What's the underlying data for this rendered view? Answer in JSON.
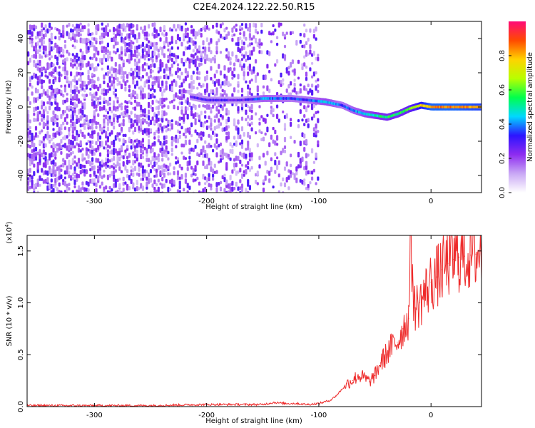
{
  "figure": {
    "title": "C2E4.2024.122.22.50.R15"
  },
  "chart_data": [
    {
      "type": "heatmap",
      "title": "C2E4.2024.122.22.50.R15",
      "xlabel": "Height of straight line (km)",
      "ylabel": "Frequency (Hz)",
      "xlim": [
        -360,
        45
      ],
      "ylim": [
        -50,
        50
      ],
      "x_ticks": [
        -300,
        -200,
        -100,
        0
      ],
      "x_tick_labels": [
        "-300",
        "-200",
        "-100",
        "0"
      ],
      "y_ticks": [
        -40,
        -20,
        0,
        20,
        40
      ],
      "y_tick_labels": [
        "-40",
        "-20",
        "0",
        "20",
        "40"
      ],
      "colorbar": {
        "label": "Normalized spectral amplitude",
        "range": [
          0,
          1
        ],
        "ticks": [
          0.0,
          0.2,
          0.4,
          0.6,
          0.8
        ],
        "tick_labels": [
          "0.0",
          "0.2",
          "0.4",
          "0.6",
          "0.8"
        ],
        "colors": [
          "#ffffff",
          "#c9a8f5",
          "#8e2cf0",
          "#2c14ff",
          "#00d8ff",
          "#00ff4c",
          "#b8ff00",
          "#ffd200",
          "#ff4a00",
          "#ff0a78"
        ]
      },
      "ridge": {
        "description_free": true,
        "x": [
          -215,
          -200,
          -170,
          -150,
          -125,
          -110,
          -95,
          -80,
          -70,
          -60,
          -50,
          -40,
          -30,
          -20,
          -10,
          0,
          20,
          45
        ],
        "y": [
          6,
          4,
          4,
          5,
          5,
          4,
          3,
          1,
          -2,
          -4,
          -5,
          -6,
          -4,
          -1,
          1,
          0,
          0,
          0
        ],
        "amplitude": [
          0.3,
          0.3,
          0.25,
          0.4,
          0.35,
          0.35,
          0.45,
          0.35,
          0.4,
          0.45,
          0.5,
          0.55,
          0.55,
          0.6,
          0.75,
          0.85,
          0.85,
          0.8
        ]
      },
      "noise_band_xlim": [
        -360,
        -100
      ]
    },
    {
      "type": "line",
      "title": "",
      "xlabel": "Height of straight line (km)",
      "ylabel": "SNR (10 * v/v)",
      "y_multiplier_label": "(x10",
      "y_multiplier_exponent": "4",
      "y_multiplier_close": ")",
      "xlim": [
        -360,
        45
      ],
      "ylim": [
        0,
        1.65
      ],
      "x_ticks": [
        -300,
        -200,
        -100,
        0
      ],
      "x_tick_labels": [
        "-300",
        "-200",
        "-100",
        "0"
      ],
      "y_ticks": [
        0.0,
        0.5,
        1.0,
        1.5
      ],
      "y_tick_labels": [
        "0.0",
        "0.5",
        "1.0",
        "1.5"
      ],
      "series": [
        {
          "color": "#ee2a2a",
          "x": [
            -360,
            -300,
            -250,
            -200,
            -190,
            -180,
            -150,
            -140,
            -130,
            -120,
            -110,
            -100,
            -90,
            -85,
            -80,
            -75,
            -70,
            -65,
            -60,
            -55,
            -50,
            -45,
            -40,
            -35,
            -30,
            -25,
            -20,
            -18,
            -15,
            -10,
            -5,
            0,
            5,
            10,
            15,
            20,
            25,
            30,
            35,
            40,
            45
          ],
          "y": [
            0.01,
            0.01,
            0.01,
            0.02,
            0.02,
            0.02,
            0.02,
            0.04,
            0.03,
            0.03,
            0.02,
            0.03,
            0.06,
            0.1,
            0.16,
            0.22,
            0.25,
            0.3,
            0.28,
            0.24,
            0.3,
            0.42,
            0.5,
            0.58,
            0.62,
            0.75,
            0.85,
            1.65,
            0.95,
            1.0,
            1.1,
            1.2,
            1.25,
            1.32,
            1.38,
            1.42,
            1.44,
            1.45,
            1.46,
            1.47,
            1.47
          ]
        }
      ]
    }
  ]
}
